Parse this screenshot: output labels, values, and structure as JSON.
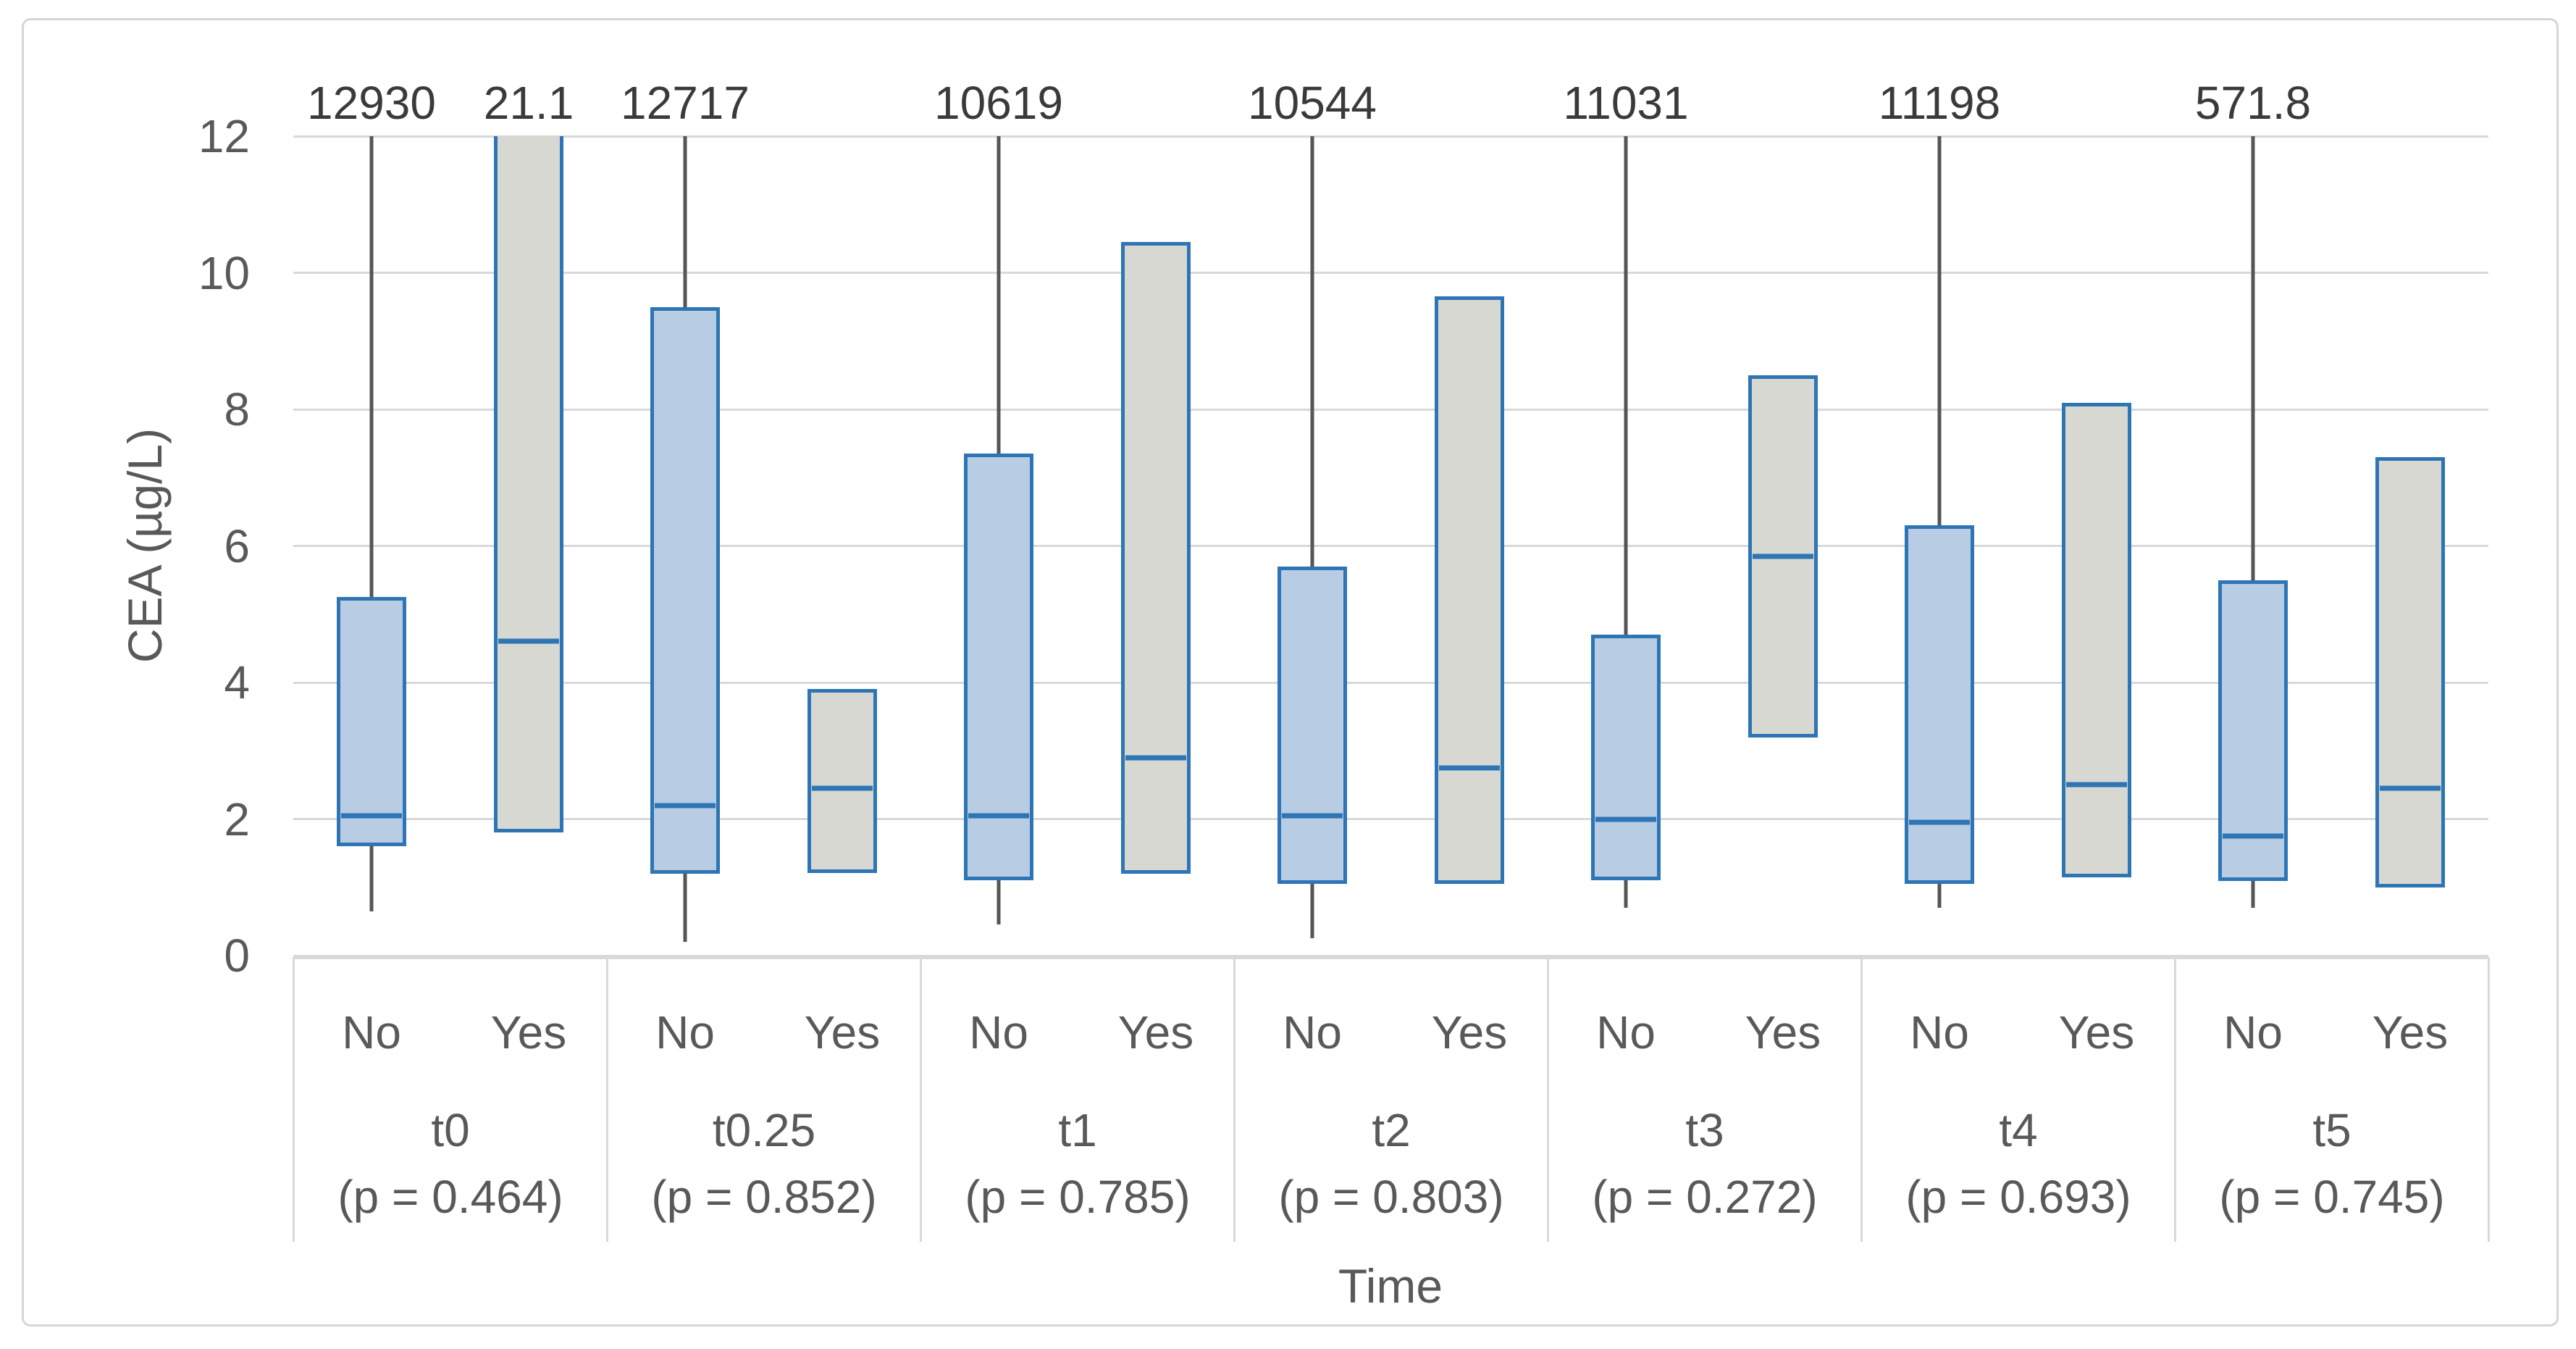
{
  "chart_data": {
    "type": "boxplot",
    "ylabel": "CEA (µg/L)",
    "xlabel": "Time",
    "ylim": [
      0,
      12
    ],
    "yticks": [
      0,
      2,
      4,
      6,
      8,
      10,
      12
    ],
    "grid": true,
    "legend_position": "none",
    "series_labels": [
      "No",
      "Yes"
    ],
    "colors": {
      "no_fill": "#b8cce4",
      "yes_fill": "#d8d8d3",
      "box_border": "#2e75b6",
      "whisker": "#555555",
      "gridline": "#d9d9d9",
      "tick_text": "#595959",
      "data_label_text": "#3a3a3a"
    },
    "note": "Upper whiskers / box tops reaching the plot top are clipped at y=12; the numeric label above is the off-scale maximum value.",
    "groups": [
      {
        "time": "t0",
        "p_label": "(p = 0.464)",
        "no": {
          "min": 0.65,
          "q1": 1.6,
          "median": 2.05,
          "q3": 5.25,
          "max": 12930,
          "max_label": "12930",
          "q3_clipped": false
        },
        "yes": {
          "min": null,
          "q1": 1.8,
          "median": 4.6,
          "q3": null,
          "max": 21.1,
          "max_label": "21.1",
          "q3_clipped": true
        }
      },
      {
        "time": "t0.25",
        "p_label": "(p = 0.852)",
        "no": {
          "min": 0.2,
          "q1": 1.2,
          "median": 2.2,
          "q3": 9.5,
          "max": 12717,
          "max_label": "12717",
          "q3_clipped": false
        },
        "yes": {
          "min": null,
          "q1": 1.2,
          "median": 2.45,
          "q3": 3.9,
          "max": null,
          "max_label": null,
          "q3_clipped": false
        }
      },
      {
        "time": "t1",
        "p_label": "(p = 0.785)",
        "no": {
          "min": 0.45,
          "q1": 1.1,
          "median": 2.05,
          "q3": 7.35,
          "max": 10619,
          "max_label": "10619",
          "q3_clipped": false
        },
        "yes": {
          "min": null,
          "q1": 1.2,
          "median": 2.9,
          "q3": 10.45,
          "max": null,
          "max_label": null,
          "q3_clipped": false
        }
      },
      {
        "time": "t2",
        "p_label": "(p = 0.803)",
        "no": {
          "min": 0.25,
          "q1": 1.05,
          "median": 2.05,
          "q3": 5.7,
          "max": 10544,
          "max_label": "10544",
          "q3_clipped": false
        },
        "yes": {
          "min": null,
          "q1": 1.05,
          "median": 2.75,
          "q3": 9.65,
          "max": null,
          "max_label": null,
          "q3_clipped": false
        }
      },
      {
        "time": "t3",
        "p_label": "(p = 0.272)",
        "no": {
          "min": 0.7,
          "q1": 1.1,
          "median": 2.0,
          "q3": 4.7,
          "max": 11031,
          "max_label": "11031",
          "q3_clipped": false
        },
        "yes": {
          "min": null,
          "q1": 3.2,
          "median": 5.85,
          "q3": 8.5,
          "max": null,
          "max_label": null,
          "q3_clipped": false
        }
      },
      {
        "time": "t4",
        "p_label": "(p = 0.693)",
        "no": {
          "min": 0.7,
          "q1": 1.05,
          "median": 1.95,
          "q3": 6.3,
          "max": 11198,
          "max_label": "11198",
          "q3_clipped": false
        },
        "yes": {
          "min": null,
          "q1": 1.15,
          "median": 2.5,
          "q3": 8.1,
          "max": null,
          "max_label": null,
          "q3_clipped": false
        }
      },
      {
        "time": "t5",
        "p_label": "(p = 0.745)",
        "no": {
          "min": 0.7,
          "q1": 1.1,
          "median": 1.75,
          "q3": 5.5,
          "max": 571.8,
          "max_label": "571.8",
          "q3_clipped": false
        },
        "yes": {
          "min": null,
          "q1": 1.0,
          "median": 2.45,
          "q3": 7.3,
          "max": null,
          "max_label": null,
          "q3_clipped": false
        }
      }
    ]
  }
}
